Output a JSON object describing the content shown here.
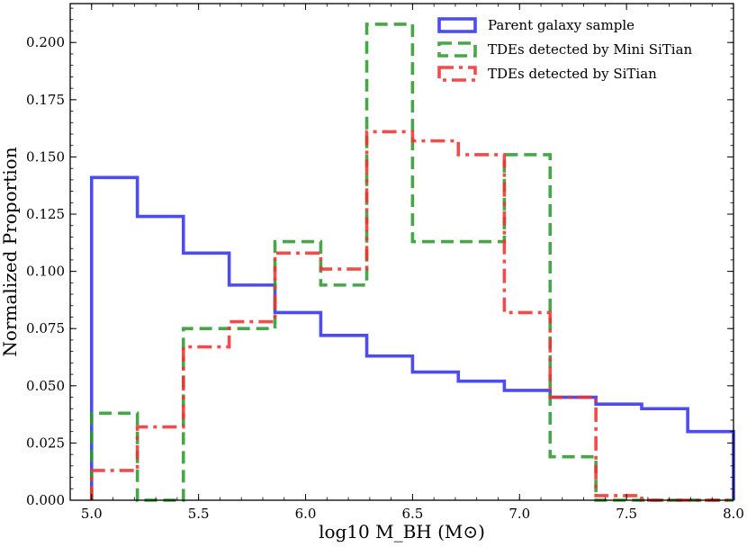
{
  "chart_data": {
    "type": "histogram-step",
    "xlabel": "log10 M_BH (M⊙)",
    "ylabel": "Normalized Proportion",
    "xlim": [
      4.9,
      8.0
    ],
    "ylim": [
      0.0,
      0.217
    ],
    "x_ticks": [
      "5.0",
      "5.5",
      "6.0",
      "6.5",
      "7.0",
      "7.5",
      "8.0"
    ],
    "y_ticks": [
      "0.000",
      "0.025",
      "0.050",
      "0.075",
      "0.100",
      "0.125",
      "0.150",
      "0.175",
      "0.200"
    ],
    "bin_edges": [
      5.0,
      5.214,
      5.429,
      5.643,
      5.857,
      6.071,
      6.286,
      6.5,
      6.714,
      6.929,
      7.143,
      7.357,
      7.571,
      7.786,
      8.0
    ],
    "legend_position": "top-right",
    "series": [
      {
        "name": "Parent galaxy sample",
        "color": "#3333ee",
        "style": "solid",
        "values": [
          0.141,
          0.124,
          0.108,
          0.094,
          0.082,
          0.072,
          0.063,
          0.056,
          0.052,
          0.048,
          0.045,
          0.042,
          0.04,
          0.03
        ]
      },
      {
        "name": "TDEs detected by Mini SiTian",
        "color": "#2e9a2e",
        "style": "dashed",
        "values": [
          0.038,
          0.0,
          0.075,
          0.075,
          0.113,
          0.094,
          0.208,
          0.113,
          0.113,
          0.151,
          0.019,
          0.0,
          0.0,
          0.0
        ]
      },
      {
        "name": "TDEs detected by SiTian",
        "color": "#ee3333",
        "style": "dashdot",
        "values": [
          0.013,
          0.032,
          0.067,
          0.078,
          0.108,
          0.101,
          0.161,
          0.157,
          0.151,
          0.082,
          0.045,
          0.002,
          0.0,
          0.0
        ]
      }
    ]
  }
}
